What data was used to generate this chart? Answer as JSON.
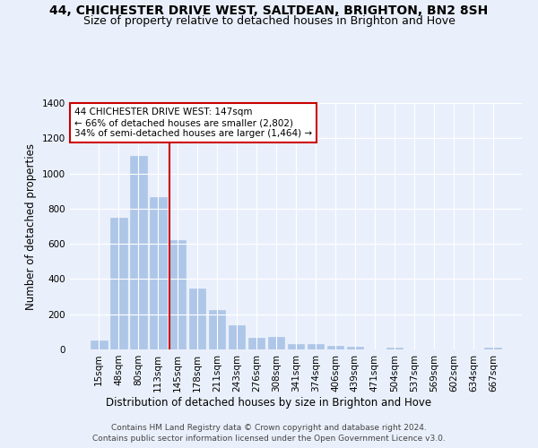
{
  "title1": "44, CHICHESTER DRIVE WEST, SALTDEAN, BRIGHTON, BN2 8SH",
  "title2": "Size of property relative to detached houses in Brighton and Hove",
  "xlabel": "Distribution of detached houses by size in Brighton and Hove",
  "ylabel": "Number of detached properties",
  "bar_labels": [
    "15sqm",
    "48sqm",
    "80sqm",
    "113sqm",
    "145sqm",
    "178sqm",
    "211sqm",
    "243sqm",
    "276sqm",
    "308sqm",
    "341sqm",
    "374sqm",
    "406sqm",
    "439sqm",
    "471sqm",
    "504sqm",
    "537sqm",
    "569sqm",
    "602sqm",
    "634sqm",
    "667sqm"
  ],
  "bar_values": [
    50,
    750,
    1100,
    865,
    620,
    345,
    225,
    135,
    65,
    70,
    30,
    30,
    22,
    13,
    0,
    12,
    0,
    0,
    0,
    0,
    12
  ],
  "bar_color": "#aec6e8",
  "bar_edgecolor": "#aec6e8",
  "vline_index": 4,
  "vline_color": "#cc0000",
  "annotation_text": "44 CHICHESTER DRIVE WEST: 147sqm\n← 66% of detached houses are smaller (2,802)\n34% of semi-detached houses are larger (1,464) →",
  "annotation_box_edgecolor": "#cc0000",
  "annotation_box_facecolor": "#ffffff",
  "ylim": [
    0,
    1400
  ],
  "yticks": [
    0,
    200,
    400,
    600,
    800,
    1000,
    1200,
    1400
  ],
  "footnote": "Contains HM Land Registry data © Crown copyright and database right 2024.\nContains public sector information licensed under the Open Government Licence v3.0.",
  "background_color": "#eaf0fb",
  "axes_background": "#eaf0fb",
  "title1_fontsize": 10,
  "title2_fontsize": 9,
  "xlabel_fontsize": 8.5,
  "ylabel_fontsize": 8.5,
  "footnote_fontsize": 6.5,
  "tick_fontsize": 7.5,
  "annotation_fontsize": 7.5
}
